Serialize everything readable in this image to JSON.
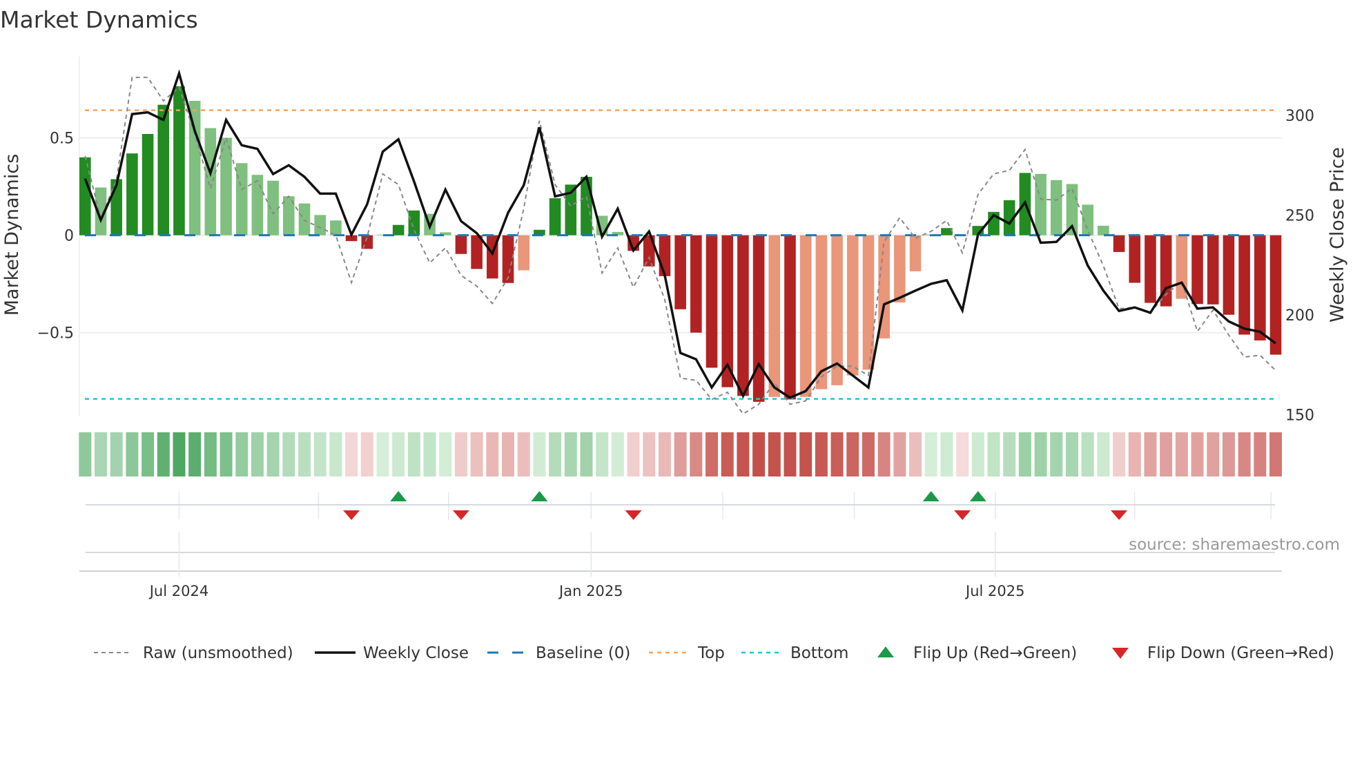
{
  "title": "Market Dynamics",
  "source": "source: sharemaestro.com",
  "chart_data": {
    "type": "bar",
    "title": "Market Dynamics",
    "ylabel": "Market Dynamics",
    "y2label": "Weekly Close Price",
    "ylim": [
      -0.93,
      0.917
    ],
    "y2lim": [
      149.2,
      329.4
    ],
    "yticks": [
      {
        "value": 0.5,
        "label": "0.5"
      },
      {
        "value": 0,
        "label": "0"
      },
      {
        "value": -0.5,
        "label": "−0.5"
      }
    ],
    "y2ticks": [
      {
        "value": 300,
        "label": "300"
      },
      {
        "value": 250,
        "label": "250"
      },
      {
        "value": 200,
        "label": "200"
      },
      {
        "value": 150,
        "label": "150"
      }
    ],
    "x_unit": "week index",
    "xticks": [
      {
        "week": 6,
        "label": "Jul 2024"
      },
      {
        "week": 32.3,
        "label": "Jan 2025"
      },
      {
        "week": 58.1,
        "label": "Jul 2025"
      }
    ],
    "minor_grid_weeks": [
      6,
      14.9,
      23.2,
      32.3,
      40.7,
      49.1,
      58.1,
      67,
      75.7
    ],
    "grid": true,
    "dynamics": [
      0.4,
      0.245,
      0.288,
      0.42,
      0.52,
      0.67,
      0.765,
      0.69,
      0.55,
      0.5,
      0.37,
      0.31,
      0.28,
      0.2,
      0.163,
      0.104,
      0.076,
      -0.03,
      -0.07,
      0.003,
      0.053,
      0.127,
      0.11,
      0.015,
      -0.096,
      -0.173,
      -0.222,
      -0.245,
      -0.18,
      0.028,
      0.19,
      0.26,
      0.3,
      0.1,
      0.017,
      -0.08,
      -0.16,
      -0.21,
      -0.38,
      -0.5,
      -0.68,
      -0.78,
      -0.825,
      -0.855,
      -0.83,
      -0.843,
      -0.83,
      -0.79,
      -0.77,
      -0.72,
      -0.69,
      -0.53,
      -0.345,
      -0.185,
      0.004,
      0.037,
      -0.004,
      0.048,
      0.12,
      0.18,
      0.32,
      0.315,
      0.283,
      0.263,
      0.157,
      0.049,
      -0.086,
      -0.244,
      -0.347,
      -0.365,
      -0.326,
      -0.353,
      -0.355,
      -0.408,
      -0.51,
      -0.54,
      -0.613
    ],
    "strong": [
      1,
      0,
      1,
      1,
      1,
      1,
      1,
      0,
      0,
      0,
      0,
      0,
      0,
      0,
      0,
      0,
      0,
      1,
      1,
      0,
      1,
      1,
      0,
      0,
      1,
      1,
      1,
      1,
      0,
      1,
      1,
      1,
      1,
      0,
      0,
      1,
      1,
      1,
      1,
      1,
      1,
      1,
      1,
      1,
      0,
      1,
      0,
      0,
      0,
      0,
      0,
      0,
      0,
      0,
      0,
      1,
      0,
      1,
      1,
      1,
      1,
      0,
      0,
      0,
      0,
      0,
      1,
      1,
      1,
      1,
      0,
      1,
      1,
      1,
      1,
      1,
      1
    ],
    "raw": [
      0.407,
      0.088,
      0.284,
      0.81,
      0.81,
      0.69,
      0.76,
      0.52,
      0.24,
      0.5,
      0.235,
      0.28,
      0.11,
      0.2,
      0.076,
      0.04,
      0.0,
      -0.243,
      -0.01,
      0.315,
      0.26,
      0.027,
      -0.142,
      -0.065,
      -0.206,
      -0.261,
      -0.35,
      -0.218,
      0.137,
      0.588,
      0.26,
      0.15,
      0.199,
      -0.194,
      -0.065,
      -0.267,
      -0.114,
      -0.33,
      -0.733,
      -0.745,
      -0.843,
      -0.806,
      -0.917,
      -0.868,
      -0.757,
      -0.868,
      -0.85,
      -0.727,
      -0.672,
      -0.672,
      -0.72,
      -0.034,
      0.09,
      -0.016,
      0.02,
      0.076,
      -0.09,
      0.21,
      0.315,
      0.333,
      0.44,
      0.186,
      0.18,
      0.241,
      0.027,
      -0.157,
      -0.377,
      -0.37,
      -0.396,
      -0.304,
      -0.236,
      -0.494,
      -0.384,
      -0.512,
      -0.625,
      -0.616,
      -0.694
    ],
    "close": [
      268.3,
      247.6,
      265,
      300.6,
      301.5,
      297.7,
      321,
      292.2,
      271,
      297.7,
      285,
      283.2,
      270.6,
      275,
      269.2,
      260.8,
      260.8,
      240.2,
      255.4,
      281.8,
      288,
      266.8,
      244.2,
      262.8,
      247,
      241,
      230.8,
      251.2,
      265,
      294,
      259.4,
      261.2,
      269.2,
      239.2,
      253.2,
      232.3,
      241.8,
      220,
      181,
      177.8,
      163.7,
      175.1,
      159.5,
      175.4,
      163.7,
      158.6,
      161.9,
      171.8,
      175.7,
      169.7,
      163.7,
      205.3,
      208.6,
      212.2,
      215.6,
      217.4,
      202.3,
      240.4,
      250,
      245.8,
      256.4,
      236.2,
      236.6,
      244.5,
      224.8,
      212.2,
      202,
      203.8,
      201.1,
      213.4,
      216.2,
      203.2,
      203.8,
      196.8,
      193.2,
      191.6,
      185.8
    ],
    "top": 0.642,
    "bottom": -0.84,
    "baseline": 0,
    "flip_up": [
      20,
      29,
      54,
      57
    ],
    "flip_down": [
      17,
      24,
      35,
      56,
      66
    ],
    "legend_placement": "bottom",
    "legend": [
      {
        "key": "raw",
        "label": "Raw (unsmoothed)"
      },
      {
        "key": "close",
        "label": "Weekly Close"
      },
      {
        "key": "baseline",
        "label": "Baseline (0)"
      },
      {
        "key": "top",
        "label": "Top"
      },
      {
        "key": "bottom",
        "label": "Bottom"
      },
      {
        "key": "flip_up",
        "label": "Flip Up (Red→Green)"
      },
      {
        "key": "flip_down",
        "label": "Flip Down (Green→Red)"
      }
    ],
    "colors": {
      "green_strong": "#228b22",
      "green_weak": "#7fbf7f",
      "red_strong": "#b22222",
      "red_weak": "#e9967a",
      "close": "#111111",
      "raw": "#888888",
      "baseline": "#1f77b4",
      "top": "#f4a261",
      "bottom": "#22c3d6",
      "flip_up": "#1a9a48",
      "flip_down": "#d62728",
      "heat_green": "#3f9f55",
      "heat_red": "#c4504a"
    }
  }
}
